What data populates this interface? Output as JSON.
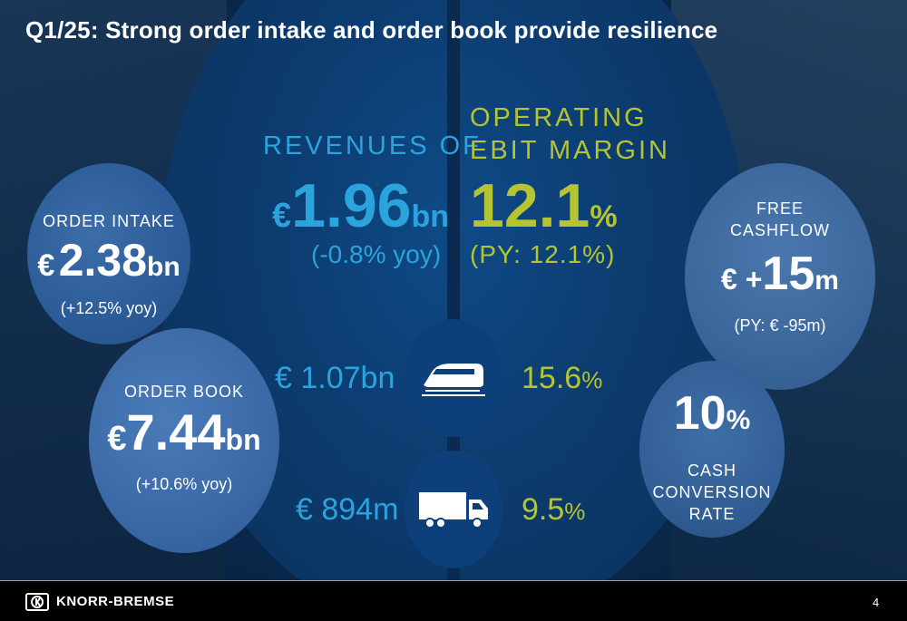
{
  "title": "Q1/25: Strong order intake and order book provide resilience",
  "order_intake": {
    "label": "ORDER INTAKE",
    "currency": "€",
    "value": "2.38",
    "unit": "bn",
    "change": "(+12.5% yoy)"
  },
  "order_book": {
    "label": "ORDER BOOK",
    "currency": "€",
    "value": "7.44",
    "unit": "bn",
    "change": "(+10.6% yoy)"
  },
  "revenues": {
    "label": "REVENUES OF",
    "currency": "€",
    "value": "1.96",
    "unit": "bn",
    "change": "(-0.8% yoy)"
  },
  "operating_ebit": {
    "label_line1": "OPERATING",
    "label_line2": "EBIT MARGIN",
    "value": "12.1",
    "unit": "%",
    "py": "(PY: 12.1%)"
  },
  "segments": {
    "rail": {
      "revenue": "€ 1.07bn",
      "margin_value": "15.6",
      "margin_unit": "%",
      "icon": "train-icon"
    },
    "truck": {
      "revenue": "€ 894m",
      "margin_value": "9.5",
      "margin_unit": "%",
      "icon": "truck-icon"
    }
  },
  "free_cashflow": {
    "label_line1": "FREE",
    "label_line2": "CASHFLOW",
    "currency": "€ +",
    "value": "15",
    "unit": "m",
    "py": "(PY: € -95m)"
  },
  "cash_conversion": {
    "value": "10",
    "unit": "%",
    "label_line1": "CASH",
    "label_line2": "CONVERSION",
    "label_line3": "RATE"
  },
  "footer": {
    "brand": "KNORR-BREMSE",
    "page": "4"
  },
  "colors": {
    "revenue_blue": "#2ba4de",
    "margin_green": "#b5c532",
    "background": "#0b2d55"
  }
}
